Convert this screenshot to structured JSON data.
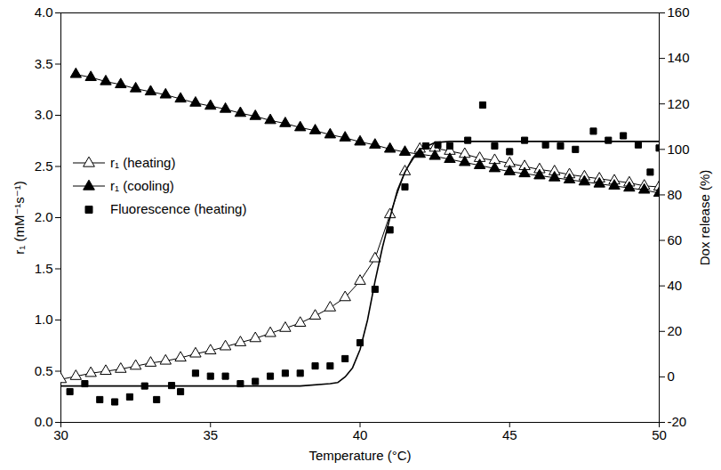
{
  "chart_data": {
    "type": "line",
    "x_label": "Temperature (°C)",
    "y_label": "r₁ (mM⁻¹s⁻¹)",
    "y2_label": "Dox release (%)",
    "xlim": [
      30,
      50
    ],
    "xticks": [
      30,
      35,
      40,
      45,
      50
    ],
    "ylim": [
      0,
      4
    ],
    "yticks": [
      {
        "value": 0,
        "label": "0.0"
      },
      {
        "value": 0.5,
        "label": "0.5"
      },
      {
        "value": 1,
        "label": "1.0"
      },
      {
        "value": 1.5,
        "label": "1.5"
      },
      {
        "value": 2,
        "label": "2.0"
      },
      {
        "value": 2.5,
        "label": "2.5"
      },
      {
        "value": 3,
        "label": "3.0"
      },
      {
        "value": 3.5,
        "label": "3.5"
      },
      {
        "value": 4,
        "label": "4.0"
      }
    ],
    "y2lim": [
      -20,
      160
    ],
    "y2ticks": [
      -20,
      0,
      20,
      40,
      60,
      80,
      100,
      120,
      140,
      160
    ],
    "grid": false,
    "legend": "left",
    "series": [
      {
        "name": "r₁ (heating)",
        "type": "line",
        "marker": "triangle-open",
        "line_style": "solid",
        "color": "#000000",
        "x": [
          30,
          30.5,
          31,
          31.5,
          32,
          32.5,
          33,
          33.5,
          34,
          34.5,
          35,
          35.5,
          36,
          36.5,
          37,
          37.5,
          38,
          38.5,
          39,
          39.5,
          40,
          40.5,
          41,
          41.5,
          42,
          42.5,
          43,
          43.5,
          44,
          44.5,
          45,
          45.5,
          46,
          46.5,
          47,
          47.5,
          48,
          48.5,
          49,
          49.5,
          50
        ],
        "values": [
          0.42,
          0.45,
          0.48,
          0.5,
          0.52,
          0.55,
          0.58,
          0.6,
          0.63,
          0.67,
          0.7,
          0.74,
          0.78,
          0.82,
          0.87,
          0.92,
          0.97,
          1.04,
          1.12,
          1.22,
          1.38,
          1.6,
          2.03,
          2.45,
          2.67,
          2.68,
          2.65,
          2.62,
          2.58,
          2.56,
          2.53,
          2.5,
          2.47,
          2.45,
          2.42,
          2.4,
          2.38,
          2.36,
          2.34,
          2.31,
          2.3
        ]
      },
      {
        "name": "r₁ (cooling)",
        "type": "line",
        "marker": "triangle",
        "line_style": "solid",
        "color": "#000000",
        "x": [
          30.5,
          31,
          31.5,
          32,
          32.5,
          33,
          33.5,
          34,
          34.5,
          35,
          35.5,
          36,
          36.5,
          37,
          37.5,
          38,
          38.5,
          39,
          39.5,
          40,
          40.5,
          41,
          41.5,
          42,
          42.5,
          43,
          43.5,
          44,
          44.5,
          45,
          45.5,
          46,
          46.5,
          47,
          47.5,
          48,
          48.5,
          49,
          49.5,
          50
        ],
        "values": [
          3.4,
          3.37,
          3.33,
          3.3,
          3.26,
          3.23,
          3.2,
          3.16,
          3.12,
          3.09,
          3.06,
          3.02,
          2.99,
          2.95,
          2.92,
          2.88,
          2.85,
          2.81,
          2.78,
          2.74,
          2.71,
          2.67,
          2.64,
          2.62,
          2.6,
          2.57,
          2.54,
          2.51,
          2.48,
          2.45,
          2.43,
          2.41,
          2.39,
          2.37,
          2.35,
          2.33,
          2.31,
          2.29,
          2.27,
          2.24
        ]
      },
      {
        "name": "Fluorescence (heating)",
        "type": "scatter",
        "marker": "square",
        "axis": "y2",
        "color": "#000000",
        "x": [
          30.3,
          30.8,
          31.3,
          31.8,
          32.3,
          32.8,
          33.2,
          33.7,
          34.0,
          34.5,
          35.0,
          35.5,
          36.0,
          36.5,
          37.0,
          37.5,
          38.0,
          38.5,
          39.0,
          39.5,
          40.0,
          40.5,
          41.0,
          41.5,
          42.2,
          42.6,
          43.0,
          43.6,
          44.1,
          44.5,
          45.0,
          45.5,
          46.2,
          46.7,
          47.2,
          47.8,
          48.3,
          48.8,
          49.3,
          49.7,
          50.0
        ],
        "values": [
          -6.5,
          -3,
          -10,
          -11,
          -8.8,
          -4,
          -10,
          -3.8,
          -6.5,
          1.6,
          0.3,
          0.3,
          -3,
          -2,
          0.3,
          1.6,
          1.6,
          4.8,
          4.8,
          8,
          15,
          38.5,
          64.6,
          83.5,
          101.5,
          102,
          101.5,
          104,
          119.5,
          101.5,
          99,
          104,
          102,
          101.5,
          100,
          108,
          104,
          106,
          102,
          90,
          100.6
        ]
      },
      {
        "type": "line",
        "line_style": "solid",
        "axis": "y2",
        "color": "#000000",
        "x": [
          30,
          38,
          39,
          39.25,
          39.5,
          39.75,
          40,
          40.25,
          40.5,
          40.75,
          41,
          41.25,
          41.5,
          41.75,
          42,
          42.5,
          43,
          50
        ],
        "values": [
          -4,
          -4,
          -3,
          -2.5,
          0,
          4,
          12,
          25,
          42,
          57,
          70,
          82,
          90,
          96,
          100,
          103,
          103.5,
          103.5
        ]
      }
    ]
  }
}
